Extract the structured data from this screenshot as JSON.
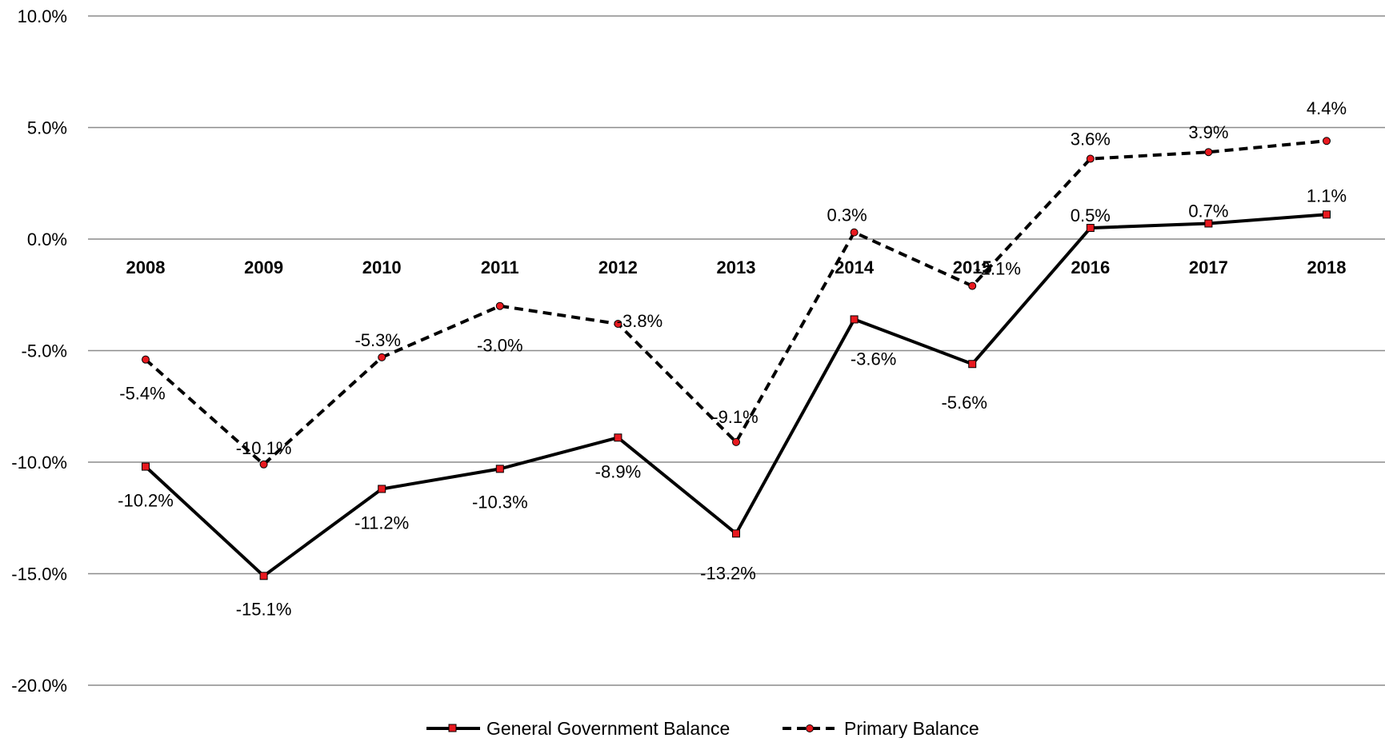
{
  "chart_data": {
    "type": "line",
    "title": "",
    "xlabel": "",
    "ylabel": "",
    "categories": [
      "2008",
      "2009",
      "2010",
      "2011",
      "2012",
      "2013",
      "2014",
      "2015",
      "2016",
      "2017",
      "2018"
    ],
    "ylim": [
      -20,
      10
    ],
    "y_ticks": [
      10,
      5,
      0,
      -5,
      -10,
      -15,
      -20
    ],
    "y_tick_labels": [
      "10.0%",
      "5.0%",
      "0.0%",
      "-5.0%",
      "-10.0%",
      "-15.0%",
      "-20.0%"
    ],
    "grid": "horizontal",
    "legend_position": "bottom",
    "series": [
      {
        "name": "General Government Balance",
        "values": [
          -10.2,
          -15.1,
          -11.2,
          -10.3,
          -8.9,
          -13.2,
          -3.6,
          -5.6,
          0.5,
          0.7,
          1.1
        ],
        "labels": [
          "-10.2%",
          "-15.1%",
          "-11.2%",
          "-10.3%",
          "-8.9%",
          "-13.2%",
          "-3.6%",
          "-5.6%",
          "0.5%",
          "0.7%",
          "1.1%"
        ],
        "line_style": "solid",
        "marker": "square",
        "line_color": "#000000",
        "marker_color": "#e8191f"
      },
      {
        "name": "Primary Balance",
        "values": [
          -5.4,
          -10.1,
          -5.3,
          -3.0,
          -3.8,
          -9.1,
          0.3,
          -2.1,
          3.6,
          3.9,
          4.4
        ],
        "labels": [
          "-5.4%",
          "-10.1%",
          "-5.3%",
          "-3.0%",
          "-3.8%",
          "-9.1%",
          "0.3%",
          "-2.1%",
          "3.6%",
          "3.9%",
          "4.4%"
        ],
        "line_style": "dashed",
        "marker": "circle",
        "line_color": "#000000",
        "marker_color": "#e8191f"
      }
    ]
  }
}
